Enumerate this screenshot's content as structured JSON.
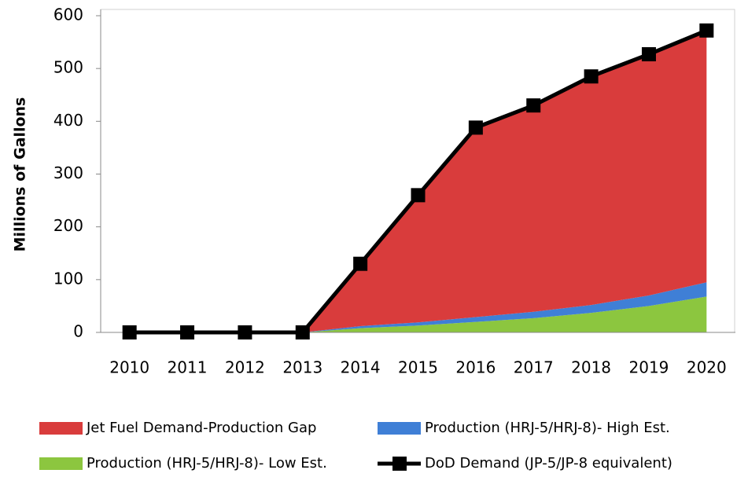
{
  "chart_data": {
    "type": "stacked_area_line",
    "y_label": "Millions of Gallons",
    "categories": [
      "2010",
      "2011",
      "2012",
      "2013",
      "2014",
      "2015",
      "2016",
      "2017",
      "2018",
      "2019",
      "2020"
    ],
    "ylim": [
      0,
      600
    ],
    "yticks": [
      0,
      100,
      200,
      300,
      400,
      500,
      600
    ],
    "grid": false,
    "legend": "bottom",
    "series": [
      {
        "name": "Jet Fuel Demand-Production Gap",
        "type": "area",
        "color": "#d93c3c",
        "values": [
          0,
          0,
          0,
          0,
          118,
          241,
          359,
          391,
          433,
          457,
          477
        ]
      },
      {
        "name": "Production (HRJ-5/HRJ-8)- High Est.",
        "type": "area",
        "color": "#3f7fd6",
        "values": [
          0,
          0,
          0,
          0,
          4,
          6,
          9,
          12,
          15,
          20,
          27
        ]
      },
      {
        "name": "Production (HRJ-5/HRJ-8)- Low Est.",
        "type": "area",
        "color": "#8cc63f",
        "values": [
          0,
          0,
          0,
          0,
          8,
          13,
          20,
          27,
          37,
          50,
          68
        ]
      },
      {
        "name": "DoD Demand (JP-5/JP-8 equivalent)",
        "type": "line",
        "color": "#000000",
        "values": [
          0,
          0,
          0,
          0,
          130,
          260,
          388,
          430,
          485,
          527,
          572
        ]
      }
    ]
  }
}
